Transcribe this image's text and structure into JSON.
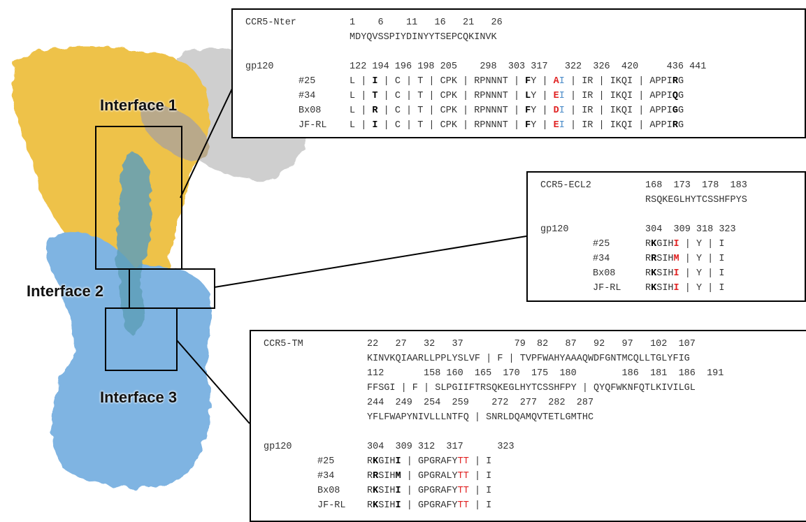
{
  "interfaces": [
    "Interface 1",
    "Interface 2",
    "Interface 3"
  ],
  "panels": [
    {
      "receptor": {
        "name": "CCR5-Nter",
        "lines": [
          {
            "positions": "1    6    11   16   21   26",
            "sequence": "MDYQVSSPIYDINYYTSEPCQKINVK"
          }
        ]
      },
      "gp120": {
        "name": "gp120",
        "positions": "122 194 196 198 205    298  303 317   322  326  420     436 441",
        "rows": [
          {
            "label": "#25",
            "segments": [
              "L | ",
              {
                "text": "I",
                "style": "bold"
              },
              " | C | T | CPK | RPNNNT | ",
              {
                "text": "F",
                "style": "bold"
              },
              "Y | ",
              {
                "text": "A",
                "style": "red-bold"
              },
              {
                "text": "I",
                "style": "blue"
              },
              " | IR | IKQI | APPI",
              {
                "text": "R",
                "style": "bold"
              },
              "G"
            ]
          },
          {
            "label": "#34",
            "segments": [
              "L | ",
              {
                "text": "T",
                "style": "bold"
              },
              " | C | T | CPK | RPNNNT | ",
              {
                "text": "L",
                "style": "bold"
              },
              "Y | ",
              {
                "text": "E",
                "style": "red-bold"
              },
              {
                "text": "I",
                "style": "blue"
              },
              " | IR | IKQI | APPI",
              {
                "text": "Q",
                "style": "bold"
              },
              "G"
            ]
          },
          {
            "label": "Bx08",
            "segments": [
              "L | ",
              {
                "text": "R",
                "style": "bold"
              },
              " | C | T | CPK | RPNNNT | ",
              {
                "text": "F",
                "style": "bold"
              },
              "Y | ",
              {
                "text": "D",
                "style": "red-bold"
              },
              {
                "text": "I",
                "style": "blue"
              },
              " | IR | IKQI | APPI",
              {
                "text": "G",
                "style": "bold"
              },
              "G"
            ]
          },
          {
            "label": "JF-RL",
            "segments": [
              "L | ",
              {
                "text": "I",
                "style": "bold"
              },
              " | C | T | CPK | RPNNNT | ",
              {
                "text": "F",
                "style": "bold"
              },
              "Y | ",
              {
                "text": "E",
                "style": "red-bold"
              },
              {
                "text": "I",
                "style": "blue"
              },
              " | IR | IKQI | APPI",
              {
                "text": "R",
                "style": "bold"
              },
              "G"
            ]
          }
        ]
      }
    },
    {
      "receptor": {
        "name": "CCR5-ECL2",
        "lines": [
          {
            "positions": "168  173  178  183",
            "sequence": "RSQKEGLHYTCSSHFPYS"
          }
        ]
      },
      "gp120": {
        "name": "gp120",
        "positions": "304  309 318 323",
        "rows": [
          {
            "label": "#25",
            "segments": [
              "R",
              {
                "text": "K",
                "style": "bold"
              },
              "GIH",
              {
                "text": "I",
                "style": "red-bold"
              },
              " | Y | I"
            ]
          },
          {
            "label": "#34",
            "segments": [
              "R",
              {
                "text": "R",
                "style": "bold"
              },
              "SIH",
              {
                "text": "M",
                "style": "red-bold"
              },
              " | Y | I"
            ]
          },
          {
            "label": "Bx08",
            "segments": [
              "R",
              {
                "text": "K",
                "style": "bold"
              },
              "SIH",
              {
                "text": "I",
                "style": "red-bold"
              },
              " | Y | I"
            ]
          },
          {
            "label": "JF-RL",
            "segments": [
              "R",
              {
                "text": "K",
                "style": "bold"
              },
              "SIH",
              {
                "text": "I",
                "style": "red-bold"
              },
              " | Y | I"
            ]
          }
        ]
      }
    },
    {
      "receptor": {
        "name": "CCR5-TM",
        "lines": [
          {
            "positions": "22   27   32   37         79  82   87   92   97   102  107",
            "sequence": "KINVKQIAARLLPPLYSLVF | F | TVPFWAHYAAAQWDFGNTMCQLLTGLYFIG"
          },
          {
            "positions": "112       158 160  165  170  175  180        186  181  186  191",
            "sequence": "FFSGI | F | SLPGIIFTRSQKEGLHYTCSSHFPY | QYQFWKNFQTLKIVILGL"
          },
          {
            "positions": "244  249  254  259    272  277  282  287",
            "sequence": "YFLFWAPYNIVLLLNTFQ | SNRLDQAMQVTETLGMTHC"
          }
        ]
      },
      "gp120": {
        "name": "gp120",
        "positions": "304  309 312  317      323",
        "rows": [
          {
            "label": "#25",
            "segments": [
              "R",
              {
                "text": "K",
                "style": "bold"
              },
              "GIH",
              {
                "text": "I",
                "style": "bold"
              },
              " | GPGRAFY",
              {
                "text": "TT",
                "style": "red"
              },
              " | I"
            ]
          },
          {
            "label": "#34",
            "segments": [
              "R",
              {
                "text": "R",
                "style": "bold"
              },
              "SIH",
              {
                "text": "M",
                "style": "bold"
              },
              " | GPGRALY",
              {
                "text": "TT",
                "style": "red"
              },
              " | I"
            ]
          },
          {
            "label": "Bx08",
            "segments": [
              "R",
              {
                "text": "K",
                "style": "bold"
              },
              "SIH",
              {
                "text": "I",
                "style": "bold"
              },
              " | GPGRAFY",
              {
                "text": "TT",
                "style": "red"
              },
              " | I"
            ]
          },
          {
            "label": "JF-RL",
            "segments": [
              "R",
              {
                "text": "K",
                "style": "bold"
              },
              "SIH",
              {
                "text": "I",
                "style": "bold"
              },
              " | GPGRAFY",
              {
                "text": "TT",
                "style": "red"
              },
              " | I"
            ]
          }
        ]
      }
    }
  ]
}
